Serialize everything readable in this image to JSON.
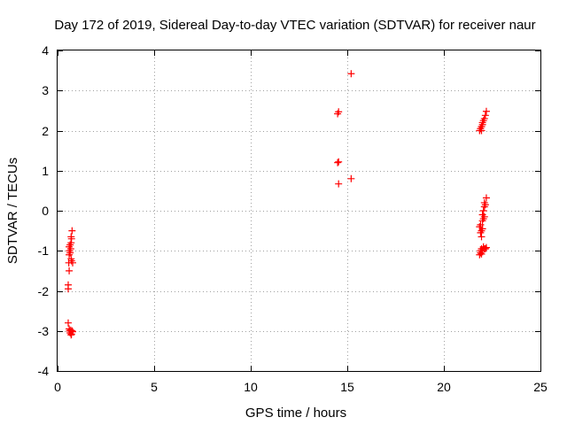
{
  "chart_data": {
    "type": "scatter",
    "title": "Day 172 of 2019, Sidereal Day-to-day VTEC variation (SDTVAR) for receiver naur",
    "xlabel": "GPS time / hours",
    "ylabel": "SDTVAR / TECUs",
    "xlim": [
      0,
      25
    ],
    "ylim": [
      -4,
      4
    ],
    "xticks": [
      0,
      5,
      10,
      15,
      20,
      25
    ],
    "yticks": [
      -4,
      -3,
      -2,
      -1,
      0,
      1,
      2,
      3,
      4
    ],
    "xtick_labels": [
      "0",
      "5",
      "10",
      "15",
      "20",
      "25"
    ],
    "ytick_labels": [
      "-4",
      "-3",
      "-2",
      "-1",
      "0",
      "1",
      "2",
      "3",
      "4"
    ],
    "grid": true,
    "marker": "+",
    "color": "#ff0000",
    "series": [
      {
        "name": "SDTVAR",
        "points": [
          [
            0.55,
            -1.95
          ],
          [
            0.55,
            -1.85
          ],
          [
            0.6,
            -1.5
          ],
          [
            0.58,
            -1.3
          ],
          [
            0.6,
            -1.1
          ],
          [
            0.62,
            -1.0
          ],
          [
            0.65,
            -1.05
          ],
          [
            0.68,
            -0.95
          ],
          [
            0.7,
            -0.8
          ],
          [
            0.7,
            -0.65
          ],
          [
            0.72,
            -0.7
          ],
          [
            0.75,
            -0.5
          ],
          [
            0.7,
            -1.2
          ],
          [
            0.72,
            -1.25
          ],
          [
            0.78,
            -1.3
          ],
          [
            0.65,
            -0.85
          ],
          [
            0.6,
            -0.9
          ],
          [
            0.55,
            -2.8
          ],
          [
            0.6,
            -2.95
          ],
          [
            0.62,
            -3.0
          ],
          [
            0.65,
            -3.05
          ],
          [
            0.7,
            -3.1
          ],
          [
            0.75,
            -3.0
          ],
          [
            0.72,
            -3.08
          ],
          [
            0.68,
            -2.98
          ],
          [
            0.78,
            -3.02
          ],
          [
            14.5,
            2.42
          ],
          [
            14.55,
            2.47
          ],
          [
            14.5,
            1.2
          ],
          [
            14.55,
            1.22
          ],
          [
            14.55,
            0.67
          ],
          [
            15.2,
            3.42
          ],
          [
            15.2,
            0.8
          ],
          [
            21.85,
            2.0
          ],
          [
            21.9,
            2.05
          ],
          [
            21.95,
            2.1
          ],
          [
            22.0,
            2.15
          ],
          [
            21.95,
            2.0
          ],
          [
            22.05,
            2.25
          ],
          [
            22.1,
            2.3
          ],
          [
            22.0,
            2.2
          ],
          [
            22.15,
            2.38
          ],
          [
            22.2,
            2.48
          ],
          [
            21.85,
            -0.4
          ],
          [
            21.9,
            -0.35
          ],
          [
            21.95,
            -0.5
          ],
          [
            21.95,
            -0.65
          ],
          [
            22.0,
            -0.25
          ],
          [
            22.0,
            -0.1
          ],
          [
            22.05,
            0.0
          ],
          [
            22.05,
            -0.2
          ],
          [
            22.1,
            0.1
          ],
          [
            22.1,
            0.2
          ],
          [
            22.15,
            0.15
          ],
          [
            22.2,
            0.32
          ],
          [
            21.9,
            -0.55
          ],
          [
            22.0,
            -0.45
          ],
          [
            22.1,
            -0.15
          ],
          [
            21.85,
            -1.1
          ],
          [
            21.9,
            -1.05
          ],
          [
            21.9,
            -1.0
          ],
          [
            21.95,
            -0.95
          ],
          [
            22.0,
            -1.0
          ],
          [
            22.05,
            -0.9
          ],
          [
            22.1,
            -0.95
          ],
          [
            22.15,
            -0.95
          ],
          [
            22.2,
            -0.92
          ],
          [
            21.95,
            -1.08
          ]
        ]
      }
    ]
  }
}
